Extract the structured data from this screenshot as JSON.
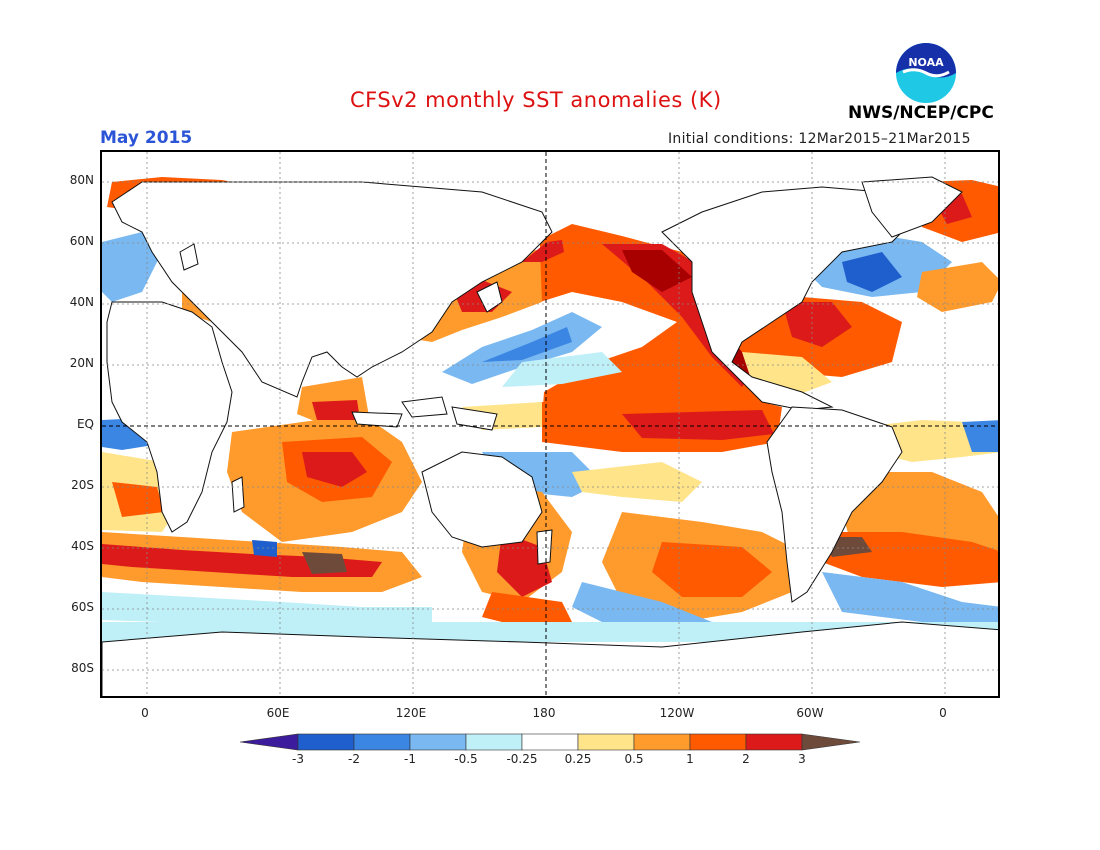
{
  "header": {
    "title": "CFSv2 monthly SST anomalies (K)",
    "month": "May 2015",
    "initial_conditions": "Initial conditions: 12Mar2015–21Mar2015",
    "agency": "NWS/NCEP/CPC",
    "logo_text": "NOAA"
  },
  "axes": {
    "lat_labels": [
      "80N",
      "60N",
      "40N",
      "20N",
      "EQ",
      "20S",
      "40S",
      "60S",
      "80S"
    ],
    "lon_labels": [
      "0",
      "60E",
      "120E",
      "180",
      "120W",
      "60W",
      "0"
    ]
  },
  "colorbar": {
    "labels": [
      "-3",
      "-2",
      "-1",
      "-0.5",
      "-0.25",
      "0.25",
      "0.5",
      "1",
      "2",
      "3"
    ],
    "colors": [
      "#3c1c9c",
      "#1f5fcd",
      "#3b86e3",
      "#79b8f0",
      "#bfeff7",
      "#ffffff",
      "#ffe48a",
      "#ff9a2c",
      "#ff5a00",
      "#dd1a1a",
      "#a80000",
      "#6e4a3a"
    ]
  },
  "map_colors": {
    "land": "#ffffff",
    "coast": "#111111",
    "warm_light": "#ffe48a",
    "warm_mid": "#ff9a2c",
    "warm": "#ff5a00",
    "hot": "#dd1a1a",
    "very_hot": "#a80000",
    "extreme": "#6e4a3a",
    "cool_light": "#bfeff7",
    "cool": "#79b8f0",
    "cold": "#3b86e3",
    "very_cold": "#1f5fcd"
  }
}
